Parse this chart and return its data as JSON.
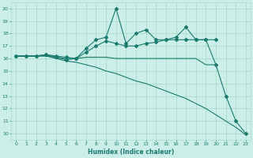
{
  "xlabel": "Humidex (Indice chaleur)",
  "bg_color": "#cceee8",
  "grid_color": "#aaddcc",
  "line_color": "#1a7a6e",
  "xlim": [
    -0.5,
    23.5
  ],
  "ylim": [
    9.5,
    20.5
  ],
  "xticks": [
    0,
    1,
    2,
    3,
    4,
    5,
    6,
    7,
    8,
    9,
    10,
    11,
    12,
    13,
    14,
    15,
    16,
    17,
    18,
    19,
    20,
    21,
    22,
    23
  ],
  "yticks": [
    10,
    11,
    12,
    13,
    14,
    15,
    16,
    17,
    18,
    19,
    20
  ],
  "lines": [
    {
      "x": [
        0,
        1,
        2,
        3,
        4,
        5,
        6,
        7,
        8,
        9,
        10,
        11,
        12,
        13,
        14,
        15,
        16,
        17,
        18,
        19,
        20,
        21,
        22,
        23
      ],
      "y": [
        16.2,
        16.2,
        16.2,
        16.2,
        16.0,
        15.8,
        15.7,
        15.5,
        15.3,
        15.0,
        14.8,
        14.5,
        14.2,
        14.0,
        13.7,
        13.4,
        13.1,
        12.8,
        12.4,
        12.0,
        11.5,
        11.0,
        10.5,
        9.9
      ],
      "marker": "D",
      "markersize": 2,
      "has_markers": false
    },
    {
      "x": [
        0,
        1,
        2,
        3,
        4,
        5,
        6,
        7,
        8,
        9,
        10,
        11,
        12,
        13,
        14,
        15,
        16,
        17,
        18,
        19,
        20
      ],
      "y": [
        16.2,
        16.2,
        16.2,
        16.3,
        16.2,
        16.1,
        16.0,
        16.8,
        17.5,
        17.7,
        20.0,
        17.2,
        18.0,
        18.3,
        17.5,
        17.5,
        17.7,
        18.5,
        17.5,
        17.5,
        17.5
      ],
      "marker": "D",
      "markersize": 2,
      "has_markers": true
    },
    {
      "x": [
        0,
        1,
        2,
        3,
        4,
        5,
        6,
        7,
        8,
        9,
        10,
        11,
        12,
        13,
        14,
        15,
        16,
        17,
        18,
        19,
        20
      ],
      "y": [
        16.2,
        16.2,
        16.2,
        16.2,
        16.1,
        16.0,
        16.0,
        16.1,
        16.1,
        16.1,
        16.0,
        16.0,
        16.0,
        16.0,
        16.0,
        16.0,
        16.0,
        16.0,
        16.0,
        15.5,
        15.5
      ],
      "marker": "D",
      "markersize": 2,
      "has_markers": false
    },
    {
      "x": [
        0,
        1,
        2,
        3,
        4,
        5,
        6,
        7,
        8,
        9,
        10,
        11,
        12,
        13,
        14,
        15,
        16,
        17,
        18,
        19,
        20,
        21,
        22,
        23
      ],
      "y": [
        16.2,
        16.2,
        16.2,
        16.3,
        16.1,
        15.9,
        16.0,
        16.5,
        17.0,
        17.4,
        17.2,
        17.0,
        17.0,
        17.2,
        17.3,
        17.5,
        17.5,
        17.5,
        17.5,
        17.5,
        15.5,
        13.0,
        11.0,
        10.0
      ],
      "marker": "D",
      "markersize": 2,
      "has_markers": true
    }
  ]
}
